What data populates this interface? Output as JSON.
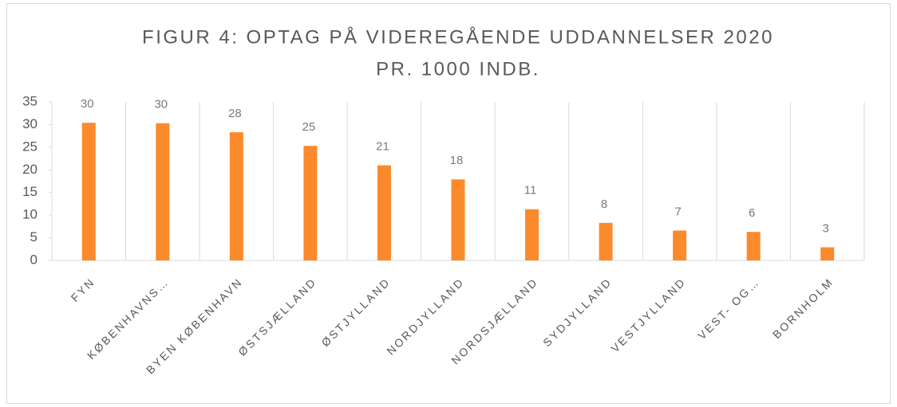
{
  "chart_data": {
    "type": "bar",
    "title": [
      "FIGUR 4: OPTAG PÅ VIDEREGÅENDE UDDANNELSER 2020",
      "PR. 1000 INDB."
    ],
    "categories": [
      "FYN",
      "KØBENHAVNS…",
      "BYEN KØBENHAVN",
      "ØSTSJÆLLAND",
      "ØSTJYLLAND",
      "NORDJYLLAND",
      "NORDSJÆLLAND",
      "SYDJYLLAND",
      "VESTJYLLAND",
      "VEST- OG…",
      "BORNHOLM"
    ],
    "values": [
      30.4,
      30.3,
      28.3,
      25.3,
      21.0,
      17.9,
      11.3,
      8.3,
      6.6,
      6.3,
      2.9
    ],
    "value_labels": [
      "30",
      "30",
      "28",
      "25",
      "21",
      "18",
      "11",
      "8",
      "7",
      "6",
      "3"
    ],
    "color": "#fb8a2c",
    "ylim": [
      0,
      35
    ],
    "yticks": [
      0,
      5,
      10,
      15,
      20,
      25,
      30,
      35
    ]
  }
}
